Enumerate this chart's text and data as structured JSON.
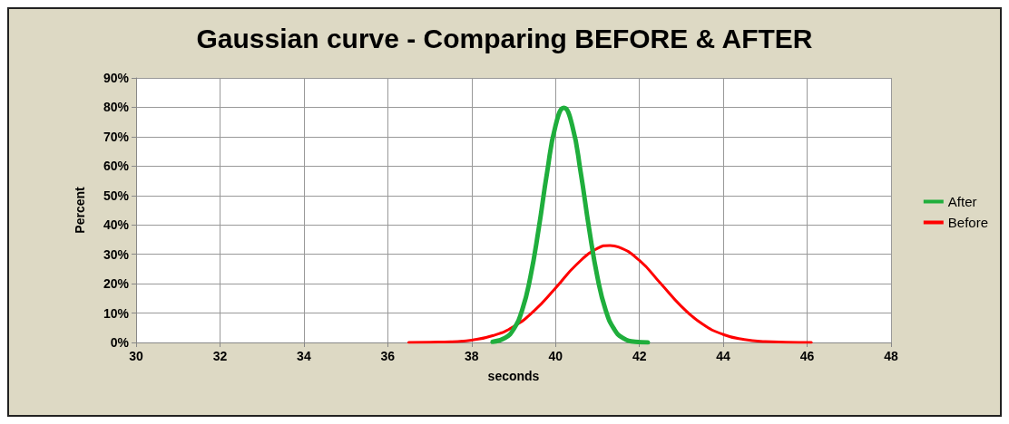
{
  "chart_data": {
    "type": "line",
    "title": "Gaussian curve - Comparing BEFORE & AFTER",
    "xlabel": "seconds",
    "ylabel": "Percent",
    "xlim": [
      30,
      48
    ],
    "xticks": [
      30,
      32,
      34,
      36,
      38,
      40,
      42,
      44,
      46,
      48
    ],
    "ylim": [
      0,
      90
    ],
    "yticks": [
      {
        "value": 0,
        "label": "0%"
      },
      {
        "value": 10,
        "label": "10%"
      },
      {
        "value": 20,
        "label": "20%"
      },
      {
        "value": 30,
        "label": "30%"
      },
      {
        "value": 40,
        "label": "40%"
      },
      {
        "value": 50,
        "label": "50%"
      },
      {
        "value": 60,
        "label": "60%"
      },
      {
        "value": 70,
        "label": "70%"
      },
      {
        "value": 80,
        "label": "80%"
      },
      {
        "value": 90,
        "label": "90%"
      }
    ],
    "grid": true,
    "legend": "right",
    "marker": "none",
    "line_style": "solid",
    "series": [
      {
        "name": "After",
        "color": "#1fae3c",
        "x": [
          38.5,
          38.8,
          39.0,
          39.2,
          39.4,
          39.6,
          39.8,
          40.0,
          40.2,
          40.4,
          40.6,
          40.8,
          41.0,
          41.2,
          41.4,
          41.6,
          41.9,
          42.2
        ],
        "values": [
          0.2,
          1.6,
          4.5,
          10.8,
          22.2,
          38.8,
          57.9,
          73.7,
          79.8,
          73.7,
          57.9,
          38.8,
          22.2,
          10.8,
          4.5,
          1.6,
          0.2,
          0
        ]
      },
      {
        "name": "Before",
        "color": "#ff0000",
        "x": [
          36.5,
          37.0,
          37.5,
          38.0,
          38.5,
          39.0,
          39.5,
          40.0,
          40.5,
          41.0,
          41.3,
          41.5,
          42.0,
          42.5,
          43.0,
          43.5,
          44.0,
          44.5,
          45.0,
          45.5,
          46.1
        ],
        "values": [
          0,
          0.1,
          0.2,
          0.8,
          2.3,
          5.4,
          10.9,
          18.5,
          26.5,
          32,
          33,
          32.5,
          27.9,
          20.2,
          12.3,
          6.3,
          2.7,
          1,
          0.3,
          0.1,
          0
        ]
      }
    ]
  }
}
